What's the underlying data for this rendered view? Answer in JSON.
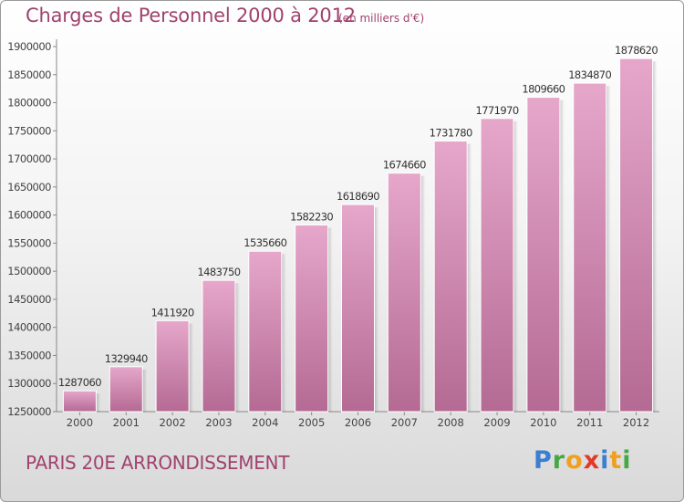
{
  "title": "Charges de Personnel 2000 à 2012",
  "subtitle": "(en milliers d'€)",
  "footer": "PARIS 20E  ARRONDISSEMENT",
  "logo": {
    "letters": [
      "P",
      "r",
      "o",
      "x",
      "i",
      "t",
      "i"
    ],
    "colors": [
      "#3a7fd0",
      "#46a844",
      "#f0a020",
      "#e23a2a",
      "#3a7fd0",
      "#f0a020",
      "#46a844"
    ]
  },
  "colors": {
    "bar_top": "#e6a7cb",
    "bar_bottom": "#b46a93",
    "text": "#a0426e"
  },
  "chart_data": {
    "type": "bar",
    "title": "Charges de Personnel 2000 à 2012",
    "xlabel": "",
    "ylabel": "",
    "categories": [
      "2000",
      "2001",
      "2002",
      "2003",
      "2004",
      "2005",
      "2006",
      "2007",
      "2008",
      "2009",
      "2010",
      "2011",
      "2012"
    ],
    "values": [
      1287060,
      1329940,
      1411920,
      1483750,
      1535660,
      1582230,
      1618690,
      1674660,
      1731780,
      1771970,
      1809660,
      1834870,
      1878620
    ],
    "ylim": [
      1250000,
      1900000
    ],
    "yticks": [
      "1250000",
      "1300000",
      "1350000",
      "1400000",
      "1450000",
      "1500000",
      "1550000",
      "1600000",
      "1650000",
      "1700000",
      "1750000",
      "1800000",
      "1850000",
      "1900000"
    ],
    "grid": false
  }
}
